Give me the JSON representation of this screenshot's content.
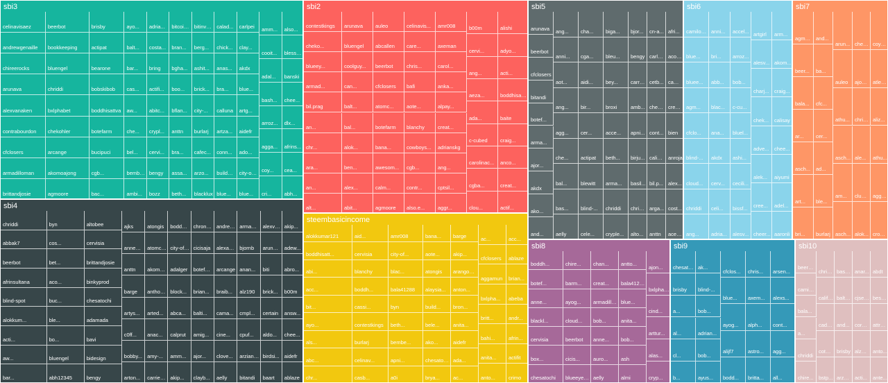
{
  "chart_data": {
    "type": "treemap",
    "groups": [
      {
        "name": "sbi3",
        "color": "#16b59e",
        "labels": [
          "celinavisaez",
          "andrewgenaille",
          "chireerocks",
          "arunava",
          "alexvanaken",
          "contrabourdon",
          "cfclosers",
          "armadilloman",
          "brittandjosie",
          "beerbot",
          "bookkeeping",
          "bluengel",
          "chriddi",
          "bxlphabet",
          "chekohler",
          "arcange",
          "akomoajong",
          "agmoore",
          "brisby",
          "actipat",
          "bearone",
          "bobskibob",
          "boddhisattva",
          "botefarm",
          "bucipuci",
          "cgb...",
          "bac...",
          "ayo...",
          "balt...",
          "bar...",
          "cas...",
          "aw...",
          "che...",
          "bel...",
          "bembel...",
          "ambi...",
          "adria...",
          "costa...",
          "bring",
          "actifi...",
          "abitc...",
          "crypl...",
          "cervi...",
          "bengy",
          "bozz",
          "bitcoinb...",
          "bran...",
          "bgha...",
          "boo...",
          "bflan...",
          "anttn",
          "bra...",
          "assa...",
          "beth...",
          "bitinvdig0",
          "berg...",
          "ashit...",
          "brick...",
          "city-...",
          "burlarj",
          "cafec...",
          "arzo...",
          "blacklux",
          "calad...",
          "chick...",
          "anas...",
          "bra...",
          "calluna",
          "artza...",
          "conn...",
          "buildaw...",
          "blue...",
          "carlpei",
          "clay...",
          "akdx",
          "blue...",
          "artg...",
          "aidefr",
          "ado...",
          "city-of-d...",
          "blue...",
          "amm...",
          "cooit...",
          "adal...",
          "bash...",
          "arroz...",
          "agga...",
          "coy...",
          "cri...",
          "also...",
          "blessed-...",
          "banski",
          "chee...",
          "dlx...",
          "afrins...",
          "cea...",
          "abh..."
        ]
      },
      {
        "name": "sbi2",
        "color": "#fd625e",
        "labels": [
          "contestkings",
          "cheko...",
          "blueey...",
          "armad...",
          "bil.prag",
          "an...",
          "chr...",
          "ara...",
          "an...",
          "alt...",
          "arunava",
          "bluengel",
          "coolguy...",
          "can...",
          "balt...",
          "bal...",
          "alok...",
          "ben...",
          "alex...",
          "abit...",
          "auleo",
          "abcallen",
          "beerbot",
          "cfclosers",
          "atomc...",
          "botefarm",
          "bana...",
          "awesom...",
          "calm...",
          "agmoore",
          "celinavis...",
          "care...",
          "chris...",
          "bafi",
          "aote...",
          "blanchy",
          "cowboys...",
          "cgb...",
          "contr...",
          "also.e...",
          "amr008",
          "axeman",
          "carol...",
          "anka...",
          "alpay...",
          "creat...",
          "adrianskg",
          "ang...",
          "cptsil...",
          "aggr...",
          "b00m",
          "cervi...",
          "ang...",
          "aeza...",
          "ada...",
          "c-cubed",
          "carolinac...",
          "cgba...",
          "clou...",
          "alishi",
          "adyo...",
          "acti...",
          "boddhisattva",
          "baite",
          "craig...",
          "anco...",
          "creat...",
          "actif..."
        ]
      },
      {
        "name": "sbi5",
        "color": "#5f6b6d",
        "labels": [
          "arunava",
          "beerbot",
          "cfclosers",
          "bitandi",
          "botef...",
          "arma...",
          "ajor...",
          "akdx",
          "ako...",
          "and...",
          "ang...",
          "anni...",
          "aot...",
          "ang...",
          "agg...",
          "che...",
          "bal...",
          "bas...",
          "aelly",
          "cha...",
          "cga...",
          "aidi...",
          "bir...",
          "cer...",
          "actipat",
          "blewitt",
          "blind-...",
          "cele...",
          "biga...",
          "bleu...",
          "bey...",
          "broxi",
          "acce...",
          "beth...",
          "arma...",
          "chriddi",
          "cryple...",
          "bjor...",
          "bengy",
          "carrieа...",
          "amb...",
          "apni...",
          "birju...",
          "basil...",
          "chris...",
          "alto...",
          "cn-a...",
          "carlpei",
          "cetb...",
          "chee...",
          "cont...",
          "calisay",
          "bil.p...",
          "arga...",
          "anttn",
          "afri...",
          "acost...",
          "camilo...",
          "creati...",
          "bien",
          "anroja",
          "alex...",
          "cost...",
          "aceso..."
        ]
      },
      {
        "name": "sbi6",
        "color": "#8ad4eb",
        "labels": [
          "camilofe...",
          "blue...",
          "bluee...",
          "agm...",
          "cfclo...",
          "blind-...",
          "cloud...",
          "chriddi",
          "ang...",
          "anni...",
          "bri...",
          "abb...",
          "blac...",
          "ana...",
          "akdx",
          "cerv...",
          "celi...",
          "adria...",
          "accel...",
          "arroz...",
          "bob...",
          "c-cu...",
          "bluel...",
          "ashi...",
          "cecili...",
          "bissf...",
          "alesv...",
          "artgirl",
          "alesv...",
          "charj...",
          "chek...",
          "adve...",
          "alek...",
          "cree...",
          "cheer...",
          "arm...",
          "akom...",
          "craig...",
          "calisay",
          "chee...",
          "aiyumi",
          "adel...",
          "aaronli"
        ]
      },
      {
        "name": "sbi7",
        "color": "#fe9666",
        "labels": [
          "agmoore",
          "beer...",
          "bala...",
          "ar...",
          "asch...",
          "art...",
          "bri...",
          "and...",
          "ba...",
          "cfc...",
          "cer...",
          "ad...",
          "ble...",
          "burlarj",
          "arun...",
          "auleo",
          "athu...",
          "asch...",
          "am...",
          "asch...",
          "chek...",
          "ajonu...",
          "chris...",
          "ale...",
          "clum...",
          "alok...",
          "coyot...",
          "atlelair",
          "aliz...",
          "athu...",
          "agga...",
          "crosh..."
        ]
      },
      {
        "name": "sbi4",
        "color": "#374649",
        "labels": [
          "chriddi",
          "abbak7",
          "beerbot",
          "afrinsultana",
          "blind-spot",
          "alokkum...",
          "acti...",
          "aw...",
          "bar...",
          "byn",
          "cos...",
          "bet...",
          "aco...",
          "buc...",
          "ble...",
          "bo...",
          "bluengel",
          "abh12345",
          "altobee",
          "cervisia",
          "brittandjosie",
          "binkyprod",
          "chesatochi",
          "adamada",
          "bavi",
          "bidesign",
          "bengy",
          "ajks",
          "annepink",
          "anttn",
          "barge",
          "artys...",
          "c0ff...",
          "bobby...",
          "arton...",
          "atongis",
          "atomcollector",
          "akomoaj...",
          "anthony...",
          "arted...",
          "anac...",
          "amy-...",
          "carrieallen",
          "boddhisattva",
          "city-of-b...",
          "adalger",
          "block...",
          "abca...",
          "calprut",
          "amm...",
          "akip...",
          "chronocrypto",
          "cicisaja",
          "botefarm",
          "brian...",
          "balti...",
          "amig...",
          "ajor...",
          "clayb...",
          "andrewgenaille",
          "alexander...",
          "arcange",
          "braib...",
          "cama...",
          "cine...",
          "clove...",
          "aelly",
          "armadill...",
          "bjornb",
          "anan...",
          "alz190",
          "cmpl...",
          "cpuf...",
          "arziansky",
          "bitandi",
          "alexvana...",
          "arunava",
          "biti",
          "brick...",
          "certain",
          "aldo...",
          "birdsi...",
          "baart",
          "akip...",
          "adew...",
          "abro...",
          "b00m",
          "answ...",
          "chee...",
          "aidefr",
          "ablaze"
        ]
      },
      {
        "name": "steembasicincome",
        "color": "#f2c80f",
        "labels": [
          "alokkumar121",
          "boddhisatt...",
          "abi...",
          "acc...",
          "bit...",
          "ayo...",
          "als...",
          "abc...",
          "chr...",
          "aid...",
          "cervisia",
          "blanchy",
          "boddh...",
          "cassi...",
          "contestkings",
          "burlarj",
          "celinav...",
          "casb...",
          "amr008",
          "city-of...",
          "blac...",
          "bala41288",
          "byn",
          "beth...",
          "bembe...",
          "apni...",
          "a0i",
          "bana...",
          "aote...",
          "atongis",
          "alaysia...",
          "build...",
          "bele...",
          "ako...",
          "chesatochi",
          "brya...",
          "barge",
          "akip...",
          "arangoaget",
          "anton...",
          "bron...",
          "anita...",
          "aidefr",
          "ada...",
          "ac...",
          "ac...",
          "cfclosers",
          "aggamun",
          "bxlpha...",
          "britt...",
          "bahi...",
          "anita...",
          "anto...",
          "acc...",
          "ablaze",
          "brian...",
          "abeba",
          "andr...",
          "afrin...",
          "actifit",
          "crimo"
        ]
      },
      {
        "name": "sbi8",
        "color": "#a66999",
        "labels": [
          "boddh...",
          "botef...",
          "anne...",
          "blackl...",
          "cervisia",
          "box...",
          "chesatochi",
          "chire...",
          "barm...",
          "ayog...",
          "cloud...",
          "beerbot",
          "cicis...",
          "blueeyes8960",
          "chan...",
          "creat...",
          "armadilloman",
          "bob...",
          "anne...",
          "auro...",
          "aelly",
          "antto...",
          "bala41288",
          "blue...",
          "anita...",
          "bob...",
          "ash",
          "almi",
          "ajon...",
          "bxlphabet",
          "cind...",
          "arttur...",
          "alas...",
          "cryp..."
        ]
      },
      {
        "name": "sbi9",
        "color": "#3599b8",
        "labels": [
          "chesatoc...",
          "brisby",
          "a...",
          "al...",
          "cl...",
          "b...",
          "ak...",
          "blind-...",
          "bob...",
          "adrian...",
          "bob...",
          "ayus...",
          "cfclos...",
          "blue...",
          "ayog...",
          "alijf7",
          "bodd...",
          "chris...",
          "axem...",
          "alph...",
          "astro...",
          "brittа...",
          "arsen...",
          "alexs...",
          "cont...",
          "agg...",
          "all..."
        ]
      },
      {
        "name": "sbi10",
        "color": "#dfbfbf",
        "labels": [
          "beerbot",
          "camilo...",
          "bala...",
          "a...",
          "chriddi",
          "chire...",
          "chris...",
          "califl...",
          "cada...",
          "coton...",
          "bstp...",
          "basyi...",
          "baltic...",
          "and...",
          "brisby",
          "arzon...",
          "anar...",
          "cjsean",
          "corsica",
          "alz190",
          "acti...",
          "abdt",
          "bessel",
          "attru...",
          "anto...",
          "ante..."
        ]
      }
    ]
  }
}
